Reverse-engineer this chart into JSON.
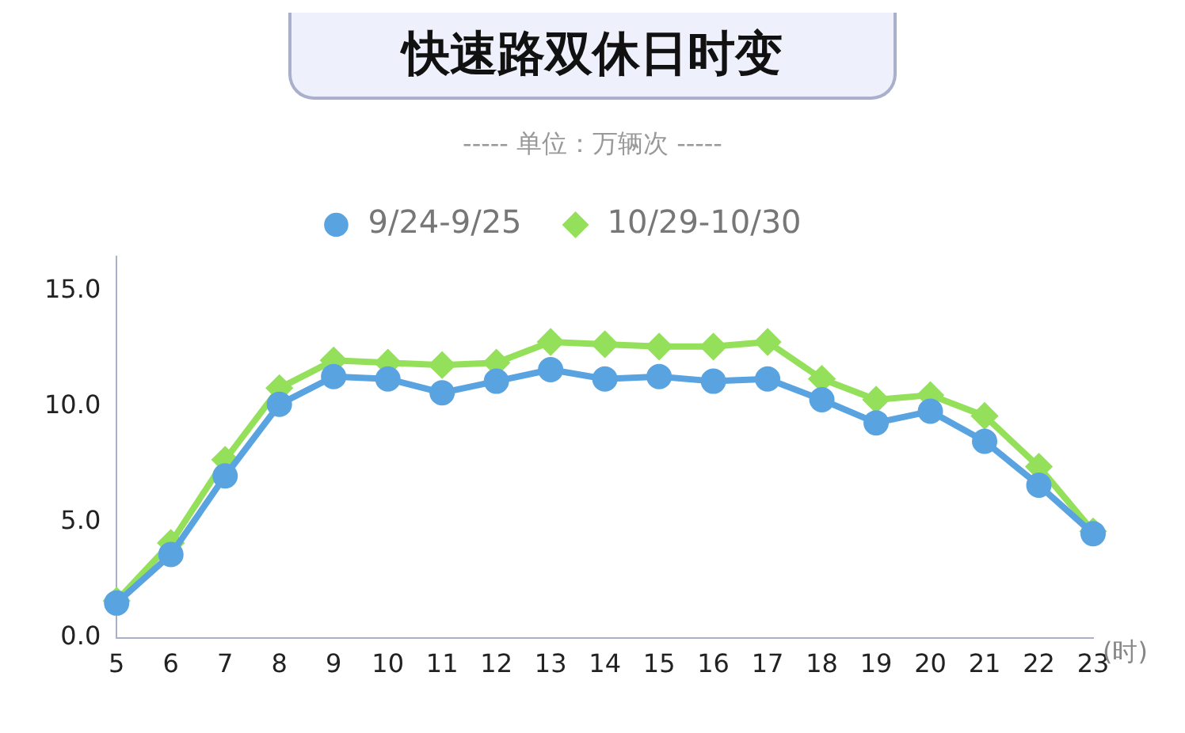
{
  "chart_data": {
    "type": "line",
    "title": "快速路双休日时变",
    "subtitle": "----- 单位：万辆次 -----",
    "xlabel": "(时)",
    "categories": [
      "5",
      "6",
      "7",
      "8",
      "9",
      "10",
      "11",
      "12",
      "13",
      "14",
      "15",
      "16",
      "17",
      "18",
      "19",
      "20",
      "21",
      "22",
      "23"
    ],
    "series": [
      {
        "name": "10/29-10/30",
        "color": "#95e05a",
        "marker": "diamond",
        "values": [
          1.6,
          4.1,
          7.7,
          10.8,
          12.0,
          11.9,
          11.8,
          11.9,
          12.8,
          12.7,
          12.6,
          12.6,
          12.8,
          11.2,
          10.3,
          10.5,
          9.6,
          7.4,
          4.6
        ]
      },
      {
        "name": "9/24-9/25",
        "color": "#58a3e0",
        "marker": "circle",
        "values": [
          1.5,
          3.6,
          7.0,
          10.1,
          11.3,
          11.2,
          10.6,
          11.1,
          11.6,
          11.2,
          11.3,
          11.1,
          11.2,
          10.3,
          9.3,
          9.8,
          8.5,
          6.6,
          4.5
        ]
      }
    ],
    "ylim": [
      0,
      16.5
    ],
    "yticks": [
      {
        "value": 0,
        "label": "0.0"
      },
      {
        "value": 5,
        "label": "5.0"
      },
      {
        "value": 10,
        "label": "10.0"
      },
      {
        "value": 15,
        "label": "15.0"
      }
    ],
    "grid": false,
    "legend": "top",
    "line_style": "solid"
  }
}
